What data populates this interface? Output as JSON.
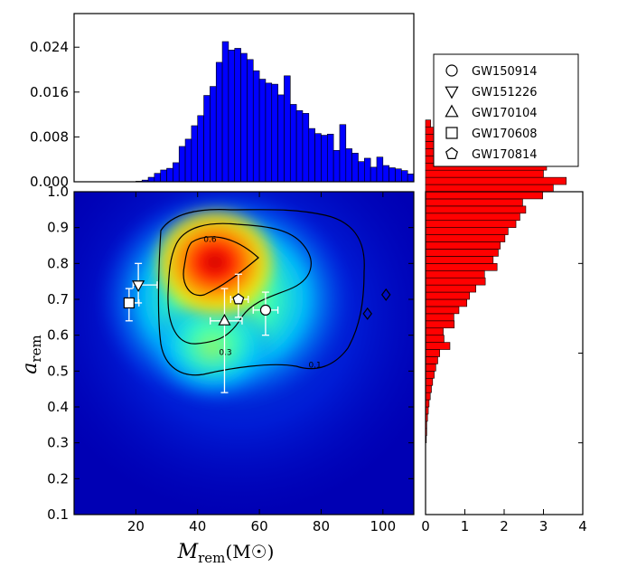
{
  "chart_data": [
    {
      "id": "main",
      "type": "heatmap",
      "xlabel": "M",
      "xlabel_sub": "rem",
      "xlabel_unit": "(M",
      "xlabel_unit_close": ")",
      "ylabel": "a",
      "ylabel_sub": "rem",
      "xlim": [
        0,
        110
      ],
      "ylim": [
        0.1,
        1.0
      ],
      "xticks": [
        20,
        40,
        60,
        80,
        100
      ],
      "yticks": [
        "0.1",
        "0.2",
        "0.3",
        "0.4",
        "0.5",
        "0.6",
        "0.7",
        "0.8",
        "0.9",
        "1.0"
      ],
      "peak": {
        "x": 46,
        "y": 0.8
      },
      "contour_labels": [
        {
          "text": "0.6",
          "x": 44,
          "y": 0.86
        },
        {
          "text": "0.3",
          "x": 49,
          "y": 0.545
        },
        {
          "text": "0.1",
          "x": 78,
          "y": 0.51
        }
      ],
      "events": [
        {
          "name": "GW150914",
          "marker": "circle",
          "x": 62,
          "y": 0.67,
          "xerr": [
            4,
            4
          ],
          "yerr": [
            0.07,
            0.05
          ]
        },
        {
          "name": "GW151226",
          "marker": "triangle-down",
          "x": 20.8,
          "y": 0.74,
          "xerr": [
            1.7,
            6.1
          ],
          "yerr": [
            0.05,
            0.06
          ]
        },
        {
          "name": "GW170104",
          "marker": "triangle-up",
          "x": 48.7,
          "y": 0.64,
          "xerr": [
            4.6,
            5.7
          ],
          "yerr": [
            0.2,
            0.09
          ]
        },
        {
          "name": "GW170608",
          "marker": "square",
          "x": 17.8,
          "y": 0.69,
          "xerr": [
            0.7,
            3.2
          ],
          "yerr": [
            0.05,
            0.04
          ]
        },
        {
          "name": "GW170814",
          "marker": "pentagon",
          "x": 53.2,
          "y": 0.7,
          "xerr": [
            2.5,
            3.2
          ],
          "yerr": [
            0.05,
            0.07
          ]
        }
      ],
      "outliers": [
        {
          "marker": "diamond",
          "x": 95,
          "y": 0.66
        },
        {
          "marker": "diamond",
          "x": 101,
          "y": 0.713
        }
      ]
    },
    {
      "id": "top_hist",
      "type": "bar",
      "color": "#0000ff",
      "xlim": [
        0,
        110
      ],
      "ylim": [
        0,
        0.03
      ],
      "yticks": [
        "0.000",
        "0.008",
        "0.016",
        "0.024"
      ],
      "bin_start": 0,
      "bin_width": 2,
      "values": [
        0,
        0,
        0,
        0,
        0,
        0,
        0,
        0,
        0,
        0,
        0.0001,
        0.0003,
        0.0008,
        0.0015,
        0.0021,
        0.0024,
        0.0034,
        0.0063,
        0.0076,
        0.01,
        0.0118,
        0.0154,
        0.017,
        0.0213,
        0.025,
        0.0235,
        0.0238,
        0.0229,
        0.0218,
        0.0198,
        0.0183,
        0.0176,
        0.0174,
        0.0155,
        0.0189,
        0.0138,
        0.0127,
        0.0122,
        0.0095,
        0.0086,
        0.0083,
        0.0085,
        0.0056,
        0.0102,
        0.0059,
        0.0051,
        0.0036,
        0.0042,
        0.0026,
        0.0044,
        0.0029,
        0.0025,
        0.0023,
        0.002,
        0.0014
      ]
    },
    {
      "id": "right_hist",
      "type": "bar",
      "orientation": "horizontal",
      "color": "#ff0000",
      "xlim": [
        0,
        4
      ],
      "xticks": [
        "0",
        "1",
        "2",
        "3",
        "4"
      ],
      "ylim": [
        0.1,
        1.0
      ],
      "bin_start": 0.1,
      "bin_width": 0.02,
      "values": [
        0,
        0,
        0,
        0,
        0,
        0,
        0,
        0,
        0,
        0,
        0.02,
        0.03,
        0.03,
        0.05,
        0.07,
        0.09,
        0.12,
        0.15,
        0.18,
        0.22,
        0.26,
        0.31,
        0.36,
        0.62,
        0.47,
        0.45,
        0.73,
        0.72,
        0.85,
        1.05,
        1.12,
        1.28,
        1.52,
        1.5,
        1.82,
        1.72,
        1.85,
        1.9,
        2.02,
        2.1,
        2.3,
        2.4,
        2.55,
        2.47,
        2.98,
        3.25,
        3.58,
        3.0,
        3.08,
        2.4,
        1.8,
        1.05,
        0.5,
        0.3,
        0.13
      ]
    }
  ],
  "legend": {
    "entries": [
      {
        "label": "GW150914",
        "marker": "circle"
      },
      {
        "label": "GW151226",
        "marker": "triangle-down"
      },
      {
        "label": "GW170104",
        "marker": "triangle-up"
      },
      {
        "label": "GW170608",
        "marker": "square"
      },
      {
        "label": "GW170814",
        "marker": "pentagon"
      }
    ]
  },
  "colors": {
    "heat_bg": "#0000b4",
    "error_bar": "#ffffff",
    "contour": "#000000"
  }
}
